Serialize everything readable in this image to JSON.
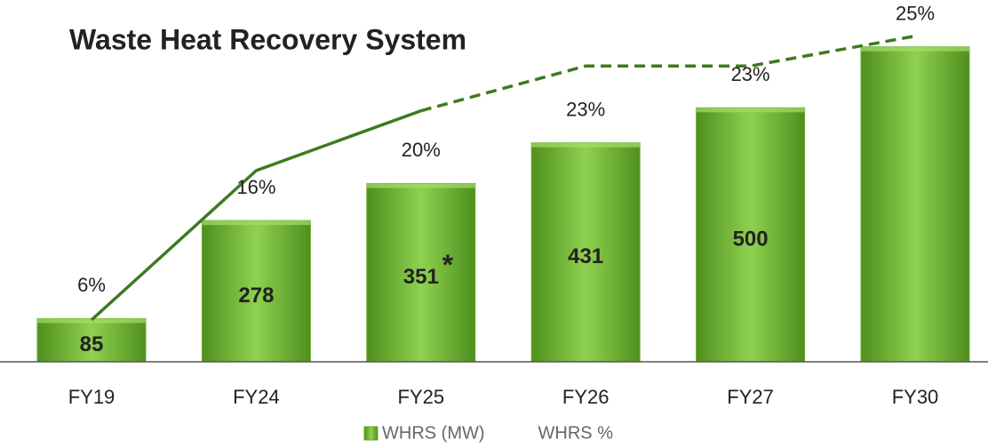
{
  "chart_data": {
    "type": "bar",
    "title": "Waste Heat Recovery System",
    "categories": [
      "FY19",
      "FY24",
      "FY25",
      "FY26",
      "FY27",
      "FY30"
    ],
    "ylim": [
      0,
      700
    ],
    "y2lim": [
      3.2,
      27
    ],
    "annotation": "*",
    "annotation_at": "FY25",
    "legend": "bottom",
    "series": [
      {
        "name": "WHRS (MW)",
        "type": "bar",
        "color": "#6aab2e",
        "values": [
          85,
          278,
          351,
          431,
          500,
          620
        ],
        "value_labels": [
          "85",
          "278",
          "351",
          "431",
          "500",
          null
        ]
      },
      {
        "name": "WHRS %",
        "type": "line",
        "axis": "y2",
        "color": "#3e7a1f",
        "dash_from": "FY25",
        "values": [
          6,
          16,
          20,
          23,
          23,
          25
        ],
        "value_labels": [
          "6%",
          "16%",
          "20%",
          "23%",
          "23%",
          "25%"
        ]
      }
    ]
  }
}
